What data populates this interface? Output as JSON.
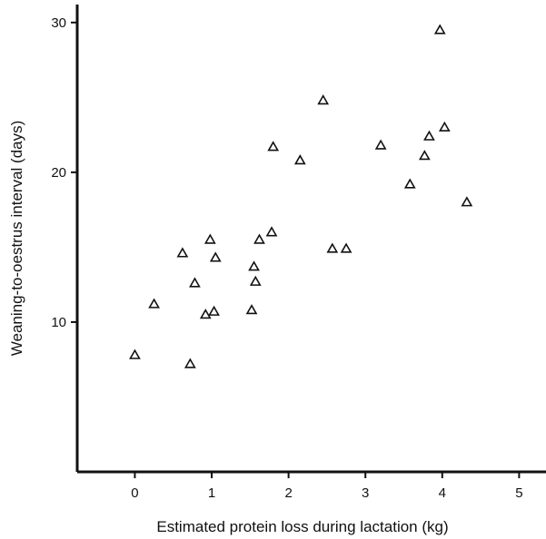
{
  "chart_data": {
    "type": "scatter",
    "title": "",
    "xlabel": "Estimated protein loss during lactation (kg)",
    "ylabel": "Weaning-to-oestrus interval (days)",
    "xlim": [
      -0.75,
      5.35
    ],
    "ylim": [
      0,
      31.2
    ],
    "xticks": [
      0,
      1,
      2,
      3,
      4,
      5
    ],
    "yticks": [
      10,
      20,
      30
    ],
    "grid": false,
    "legend": "none",
    "marker": "open-triangle",
    "points": [
      {
        "x": 0.0,
        "y": 7.8
      },
      {
        "x": 0.25,
        "y": 11.2
      },
      {
        "x": 0.62,
        "y": 14.6
      },
      {
        "x": 0.72,
        "y": 7.2
      },
      {
        "x": 0.78,
        "y": 12.6
      },
      {
        "x": 0.92,
        "y": 10.5
      },
      {
        "x": 0.98,
        "y": 15.5
      },
      {
        "x": 1.03,
        "y": 10.7
      },
      {
        "x": 1.05,
        "y": 14.3
      },
      {
        "x": 1.52,
        "y": 10.8
      },
      {
        "x": 1.55,
        "y": 13.7
      },
      {
        "x": 1.57,
        "y": 12.7
      },
      {
        "x": 1.62,
        "y": 15.5
      },
      {
        "x": 1.78,
        "y": 16.0
      },
      {
        "x": 1.8,
        "y": 21.7
      },
      {
        "x": 2.15,
        "y": 20.8
      },
      {
        "x": 2.45,
        "y": 24.8
      },
      {
        "x": 2.57,
        "y": 14.9
      },
      {
        "x": 2.75,
        "y": 14.9
      },
      {
        "x": 3.2,
        "y": 21.8
      },
      {
        "x": 3.58,
        "y": 19.2
      },
      {
        "x": 3.77,
        "y": 21.1
      },
      {
        "x": 3.83,
        "y": 22.4
      },
      {
        "x": 3.97,
        "y": 29.5
      },
      {
        "x": 4.03,
        "y": 23.0
      },
      {
        "x": 4.32,
        "y": 18.0
      }
    ]
  }
}
